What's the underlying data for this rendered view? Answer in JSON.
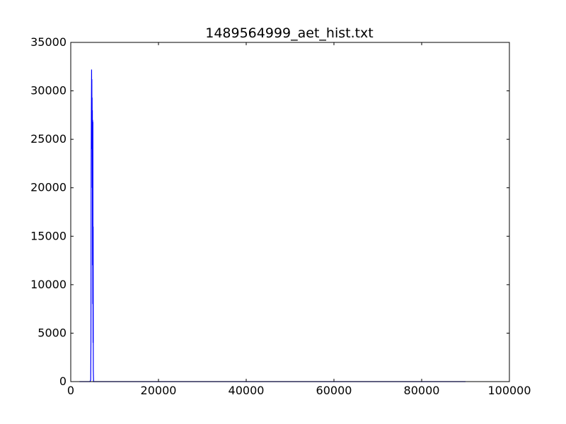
{
  "chart_data": {
    "type": "line",
    "title": "1489564999_aet_hist.txt",
    "xlabel": "",
    "ylabel": "",
    "xlim": [
      0,
      100000
    ],
    "ylim": [
      0,
      35000
    ],
    "x_ticks": [
      0,
      20000,
      40000,
      60000,
      80000,
      100000
    ],
    "y_ticks": [
      0,
      5000,
      10000,
      15000,
      20000,
      25000,
      30000,
      35000
    ],
    "grid": false,
    "legend": "none",
    "series": [
      {
        "color": "#0000ff",
        "points": [
          [
            2000,
            0
          ],
          [
            4400,
            0
          ],
          [
            4550,
            200
          ],
          [
            4600,
            4000
          ],
          [
            4650,
            22000
          ],
          [
            4700,
            28000
          ],
          [
            4750,
            32200
          ],
          [
            4780,
            26000
          ],
          [
            4810,
            31200
          ],
          [
            4840,
            24000
          ],
          [
            4870,
            29300
          ],
          [
            4900,
            20000
          ],
          [
            4930,
            28000
          ],
          [
            4960,
            12000
          ],
          [
            4990,
            27000
          ],
          [
            5020,
            8000
          ],
          [
            5050,
            26800
          ],
          [
            5080,
            4000
          ],
          [
            5110,
            16000
          ],
          [
            5140,
            1200
          ],
          [
            5200,
            0
          ],
          [
            90000,
            0
          ]
        ]
      }
    ]
  }
}
